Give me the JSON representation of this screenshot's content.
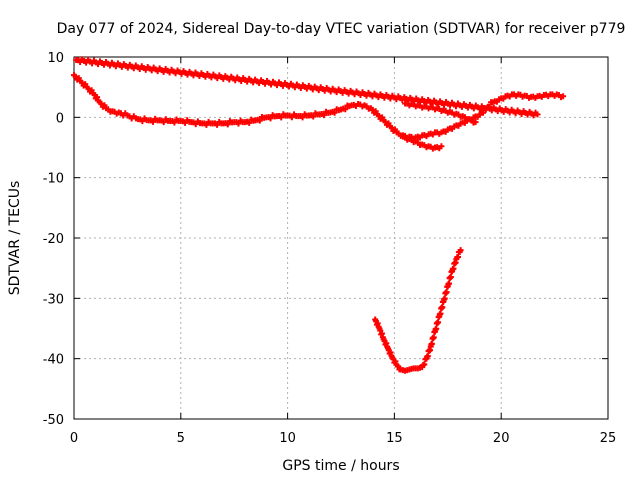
{
  "chart_data": {
    "type": "scatter",
    "title": "Day 077 of 2024, Sidereal Day-to-day VTEC variation (SDTVAR) for receiver p779",
    "xlabel": "GPS time / hours",
    "ylabel": "SDTVAR / TECUs",
    "xlim": [
      0,
      25
    ],
    "ylim": [
      -50,
      10
    ],
    "xticks": [
      0,
      5,
      10,
      15,
      20,
      25
    ],
    "yticks": [
      -50,
      -40,
      -30,
      -20,
      -10,
      0,
      10
    ],
    "xtick_labels": [
      "0",
      "5",
      "10",
      "15",
      "20",
      "25"
    ],
    "ytick_labels": [
      "-50",
      "-40",
      "-30",
      "-20",
      "-10",
      "0",
      "10"
    ],
    "grid": true,
    "marker_color": "#ff0000",
    "series": [
      {
        "name": "main-trace",
        "x": [
          0.0,
          0.3,
          0.6,
          0.9,
          1.2,
          1.5,
          1.8,
          2.1,
          2.5,
          3.0,
          3.5,
          4.0,
          4.5,
          5.0,
          5.5,
          6.0,
          6.5,
          7.0,
          7.5,
          8.0,
          8.5,
          9.0,
          9.5,
          10.0,
          10.5,
          11.0,
          11.5,
          12.0,
          12.5,
          13.0,
          13.3,
          13.6,
          13.9,
          14.2,
          14.5,
          14.8,
          15.1,
          15.4,
          15.7,
          16.0,
          16.3,
          16.6,
          16.9,
          17.2,
          17.5,
          17.8,
          18.1,
          18.4,
          18.7,
          19.0,
          19.3,
          19.6,
          19.9,
          20.2,
          20.5,
          20.8,
          21.1,
          21.4,
          21.7,
          22.0,
          22.3,
          22.6,
          22.9
        ],
        "y": [
          7.0,
          6.0,
          5.0,
          4.0,
          2.5,
          1.5,
          1.0,
          0.8,
          0.3,
          -0.3,
          -0.5,
          -0.5,
          -0.6,
          -0.6,
          -0.8,
          -1.0,
          -1.0,
          -1.0,
          -0.8,
          -0.8,
          -0.5,
          0.0,
          0.2,
          0.3,
          0.2,
          0.3,
          0.5,
          0.8,
          1.3,
          2.0,
          2.2,
          2.0,
          1.5,
          0.5,
          -0.5,
          -1.5,
          -2.5,
          -3.0,
          -3.2,
          -3.3,
          -3.0,
          -2.8,
          -2.5,
          -2.5,
          -2.0,
          -1.5,
          -1.0,
          -0.5,
          0.0,
          0.5,
          1.5,
          2.5,
          3.0,
          3.5,
          3.8,
          3.8,
          3.6,
          3.4,
          3.5,
          3.7,
          3.8,
          3.8,
          3.5
        ]
      },
      {
        "name": "upper-branch",
        "x": [
          15.5,
          15.8,
          16.1,
          16.4,
          16.7,
          17.0,
          17.3,
          17.6,
          17.9,
          18.2,
          18.5,
          18.8
        ],
        "y": [
          2.3,
          2.2,
          2.0,
          1.8,
          1.7,
          1.5,
          1.2,
          0.9,
          0.6,
          0.2,
          -0.3,
          -0.8
        ]
      },
      {
        "name": "lower-branch",
        "x": [
          15.4,
          15.7,
          16.0,
          16.3,
          16.6,
          16.9,
          17.2
        ],
        "y": [
          -3.2,
          -3.6,
          -4.0,
          -4.5,
          -4.8,
          -5.0,
          -4.8
        ]
      },
      {
        "name": "negative-excursion",
        "x": [
          14.1,
          14.3,
          14.5,
          14.7,
          14.9,
          15.1,
          15.3,
          15.5,
          15.7,
          15.9,
          16.1,
          16.3,
          16.5,
          16.7,
          16.9,
          17.1,
          17.3,
          17.5,
          17.7,
          17.9,
          18.1
        ],
        "y": [
          -33.5,
          -35.0,
          -36.8,
          -38.3,
          -39.8,
          -41.0,
          -41.8,
          -42.0,
          -41.8,
          -41.6,
          -41.6,
          -41.4,
          -40.0,
          -38.0,
          -35.5,
          -33.0,
          -30.5,
          -28.0,
          -25.5,
          -23.5,
          -22.0
        ]
      },
      {
        "name": "isolated-points",
        "x": [
          0.1,
          21.7
        ],
        "y": [
          9.5,
          0.5
        ]
      }
    ]
  }
}
